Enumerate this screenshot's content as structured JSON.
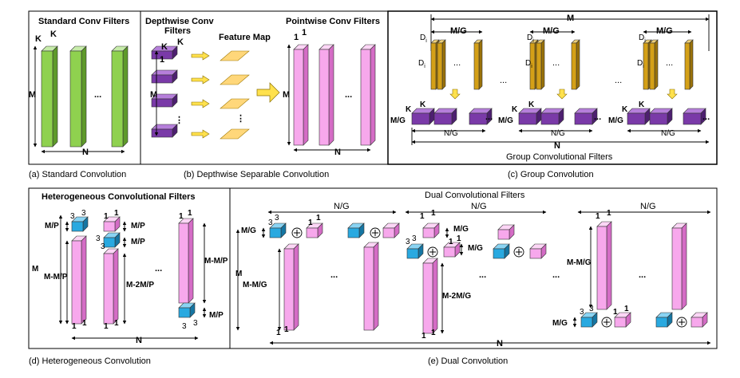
{
  "colors": {
    "green_front": "#8fd14f",
    "green_side": "#5e9a2a",
    "green_top": "#c7ecaa",
    "purple_front": "#7a3aa8",
    "purple_side": "#4d1f70",
    "purple_top": "#b67fdb",
    "gold_front": "#d4a017",
    "gold_side": "#9a7209",
    "gold_top": "#f0d27a",
    "pink_front": "#f7a8ec",
    "pink_side": "#d46cc5",
    "pink_top": "#fcd6f6",
    "cyan_front": "#29a9e0",
    "cyan_side": "#1576a3",
    "cyan_top": "#8ad4f3",
    "yellow_front": "#ffe14d",
    "yellow_side": "#c9a800",
    "yellow_top": "#fff3a6",
    "orange_top": "#ffd77a",
    "orange_front": "#f4b400"
  },
  "panel_a": {
    "title": "Standard Conv Filters",
    "k1": "K",
    "k2": "K",
    "m": "M",
    "n": "N",
    "dots": "...",
    "caption": "(a)  Standard Convolution"
  },
  "panel_b": {
    "title_left": "Depthwise Conv",
    "title_left2": "Filters",
    "title_mid": "Feature Map",
    "title_right": "Pointwise Conv Filters",
    "k1": "K",
    "k2": "K",
    "one": "1",
    "m": "M",
    "m2": "M",
    "n": "N",
    "p1": "1",
    "p2": "1",
    "dots": "...",
    "vdots": "⋮",
    "caption": "(b)  Depthwise Separable Convolution"
  },
  "panel_c": {
    "m": "M",
    "mg": "M/G",
    "di": "D",
    "di_sub": "i",
    "k": "K",
    "ng": "N/G",
    "n": "N",
    "dots": "...",
    "caption_in": "Group Convolutional Filters",
    "caption": "(c)  Group Convolution"
  },
  "panel_d": {
    "title": "Heterogeneous Convolutional Filters",
    "three": "3",
    "one": "1",
    "mp": "M/P",
    "mmp": "M-M/P",
    "m2mp": "M-2M/P",
    "m": "M",
    "n": "N",
    "dots": "...",
    "caption": "(d)  Heterogeneous Convolution"
  },
  "panel_e": {
    "title": "Dual Convolutional Filters",
    "ng": "N/G",
    "mg": "M/G",
    "m": "M",
    "mmg": "M-M/G",
    "m2mg": "M-2M/G",
    "n": "N",
    "three": "3",
    "one": "1",
    "plus": "+",
    "dots": "...",
    "caption": "(e)  Dual Convolution"
  }
}
